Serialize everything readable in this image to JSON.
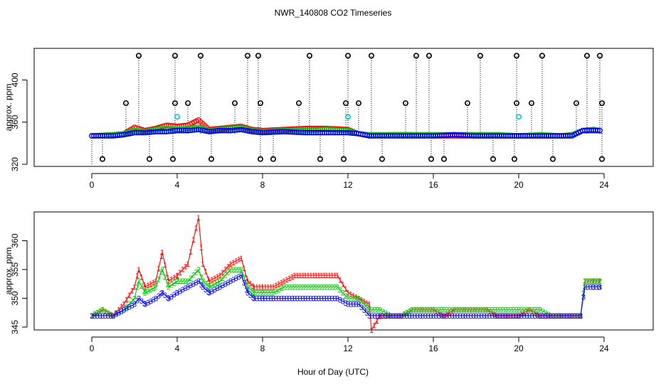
{
  "title": "NWR_140808  CO2 Timeseries",
  "xlabel": "Hour of Day (UTC)",
  "colors": {
    "series1": "#ff0000",
    "series2": "#00cc00",
    "series3": "#0000ff",
    "flagged": "#000000",
    "cyan": "#00cccc"
  },
  "chart_data": [
    {
      "type": "scatter",
      "panel": "top",
      "ylabel": "approx. ppm",
      "xlim": [
        -2.7,
        26.3
      ],
      "ylim": [
        318,
        430
      ],
      "xticks": [
        0,
        4,
        8,
        12,
        16,
        20,
        24
      ],
      "yticks": [
        320,
        360,
        400
      ],
      "baseline_series": [
        {
          "name": "1",
          "x": [
            0,
            1,
            1.5,
            2,
            2.5,
            3,
            3.5,
            4,
            4.5,
            5,
            5.5,
            6,
            6.5,
            7,
            7.5,
            8,
            9,
            10,
            11,
            12,
            12.5,
            13,
            14,
            15,
            16,
            17,
            18,
            19,
            20,
            21,
            22,
            22.5,
            23,
            23.5,
            23.8
          ],
          "y": [
            347,
            348,
            349,
            355,
            352,
            354,
            357,
            356,
            357,
            362,
            353,
            354,
            355,
            356,
            353,
            352,
            353,
            354,
            354,
            353,
            349,
            347,
            348,
            348,
            347,
            347,
            347,
            347,
            347,
            347,
            347,
            348,
            352,
            353,
            352
          ]
        },
        {
          "name": "2",
          "x": [
            0,
            1,
            1.5,
            2,
            2.5,
            3,
            3.5,
            4,
            4.5,
            5,
            5.5,
            6,
            6.5,
            7,
            7.5,
            8,
            9,
            10,
            11,
            12,
            12.5,
            13,
            14,
            15,
            16,
            17,
            18,
            19,
            20,
            21,
            22,
            22.5,
            23,
            23.5,
            23.8
          ],
          "y": [
            347,
            348,
            349,
            352,
            351,
            353,
            354,
            353,
            354,
            355,
            352,
            353,
            354,
            355,
            352,
            351,
            352,
            352,
            353,
            352,
            349,
            348,
            348,
            348,
            348,
            348,
            348,
            348,
            347,
            348,
            347,
            348,
            352,
            353,
            352
          ]
        },
        {
          "name": "3",
          "x": [
            0,
            1,
            1.5,
            2,
            2.5,
            3,
            3.5,
            4,
            4.5,
            5,
            5.5,
            6,
            6.5,
            7,
            7.5,
            8,
            9,
            10,
            11,
            12,
            12.5,
            13,
            14,
            15,
            16,
            17,
            18,
            19,
            20,
            21,
            22,
            22.5,
            23,
            23.5,
            23.8
          ],
          "y": [
            347,
            347,
            348,
            350,
            350,
            351,
            351,
            352,
            352,
            353,
            351,
            352,
            352,
            353,
            351,
            350,
            351,
            350,
            350,
            350,
            349,
            347,
            347,
            347,
            347,
            348,
            347,
            347,
            347,
            347,
            347,
            347,
            352,
            352,
            352
          ]
        }
      ],
      "flagged_points": {
        "high_x": [
          2.2,
          3.9,
          5.1,
          7.3,
          7.8,
          10.2,
          12.0,
          13.1,
          15.2,
          15.8,
          18.2,
          19.9,
          21.1,
          23.2,
          23.8
        ],
        "high_y": 423,
        "mid_x": [
          1.6,
          3.9,
          4.5,
          6.7,
          7.9,
          9.7,
          11.9,
          12.5,
          14.7,
          17.6,
          19.9,
          20.6,
          22.7,
          23.9
        ],
        "mid_y": 378,
        "low_x": [
          0.5,
          2.7,
          3.8,
          5.6,
          7.9,
          8.5,
          10.7,
          11.8,
          13.6,
          15.9,
          16.5,
          18.8,
          19.8,
          21.6,
          23.9
        ],
        "low_y": 325,
        "cyan_x": [
          4.0,
          12.0,
          20.0
        ],
        "cyan_y": 365
      }
    },
    {
      "type": "scatter",
      "panel": "bottom",
      "ylabel": "approx. ppm",
      "xlim": [
        -2.7,
        26.3
      ],
      "ylim": [
        344.5,
        365
      ],
      "xticks": [
        0,
        4,
        8,
        12,
        16,
        20,
        24
      ],
      "yticks": [
        345,
        350,
        355,
        360
      ],
      "marker_labels": [
        "1",
        "2",
        "3"
      ],
      "series": [
        {
          "name": "1",
          "x": [
            0,
            0.5,
            1,
            1.5,
            2,
            2.2,
            2.5,
            3,
            3.3,
            3.6,
            4,
            4.5,
            5,
            5.2,
            5.5,
            6,
            6.5,
            7,
            7.3,
            7.6,
            8,
            8.5,
            9,
            9.5,
            10,
            10.5,
            11,
            11.5,
            12,
            12.5,
            13,
            13.1,
            13.5,
            14,
            14.5,
            15,
            15.5,
            16,
            16.5,
            17,
            17.5,
            18,
            18.5,
            19,
            19.5,
            20,
            20.5,
            21,
            21.5,
            22,
            22.5,
            22.9,
            23.1,
            23.5,
            23.8
          ],
          "y": [
            347,
            348,
            347,
            349,
            352,
            355,
            352,
            353,
            358,
            353,
            354,
            356,
            364,
            356,
            353,
            354,
            356,
            357,
            353,
            352,
            352,
            352,
            353,
            354,
            354,
            354,
            354,
            354,
            351,
            350,
            349,
            344.5,
            347,
            347,
            347,
            348,
            348,
            348,
            347,
            348,
            348,
            348,
            348,
            347,
            347,
            347,
            348,
            347,
            347,
            347,
            347,
            347,
            353,
            353,
            353
          ]
        },
        {
          "name": "2",
          "x": [
            0,
            0.5,
            1,
            1.5,
            2,
            2.2,
            2.5,
            3,
            3.3,
            3.6,
            4,
            4.5,
            5,
            5.2,
            5.5,
            6,
            6.5,
            7,
            7.3,
            7.6,
            8,
            8.5,
            9,
            9.5,
            10,
            10.5,
            11,
            11.5,
            12,
            12.5,
            13,
            13.5,
            14,
            14.5,
            15,
            15.5,
            16,
            16.5,
            17,
            17.5,
            18,
            18.5,
            19,
            19.5,
            20,
            20.5,
            21,
            21.5,
            22,
            22.5,
            22.9,
            23.1,
            23.5,
            23.8
          ],
          "y": [
            347,
            348,
            347,
            348,
            350,
            353,
            351,
            352,
            355,
            352,
            353,
            353,
            355,
            353,
            352,
            353,
            355,
            355,
            352,
            351,
            351,
            351,
            352,
            352,
            352,
            352,
            352,
            352,
            350,
            350,
            348,
            348,
            347,
            347,
            348,
            348,
            348,
            348,
            348,
            348,
            348,
            348,
            348,
            348,
            348,
            348,
            348,
            347,
            347,
            347,
            347,
            353,
            353,
            353
          ]
        },
        {
          "name": "3",
          "x": [
            0,
            0.5,
            1,
            1.5,
            2,
            2.2,
            2.5,
            3,
            3.3,
            3.6,
            4,
            4.5,
            5,
            5.2,
            5.5,
            6,
            6.5,
            7,
            7.3,
            7.6,
            8,
            8.5,
            9,
            9.5,
            10,
            10.5,
            11,
            11.5,
            12,
            12.5,
            13,
            13.5,
            14,
            14.5,
            15,
            15.5,
            16,
            16.5,
            17,
            17.5,
            18,
            18.5,
            19,
            19.5,
            20,
            20.5,
            21,
            21.5,
            22,
            22.5,
            22.9,
            23.1,
            23.5,
            23.8
          ],
          "y": [
            347,
            347,
            347,
            348,
            349,
            350,
            349,
            350,
            351,
            350,
            351,
            352,
            353,
            352,
            351,
            352,
            353,
            354,
            351,
            350,
            350,
            350,
            350,
            350,
            350,
            350,
            350,
            350,
            349,
            349,
            347,
            347,
            347,
            347,
            347,
            347,
            347,
            347,
            347,
            347,
            347,
            347,
            347,
            347,
            347,
            347,
            347,
            347,
            347,
            347,
            347,
            352,
            352,
            352
          ]
        }
      ]
    }
  ]
}
